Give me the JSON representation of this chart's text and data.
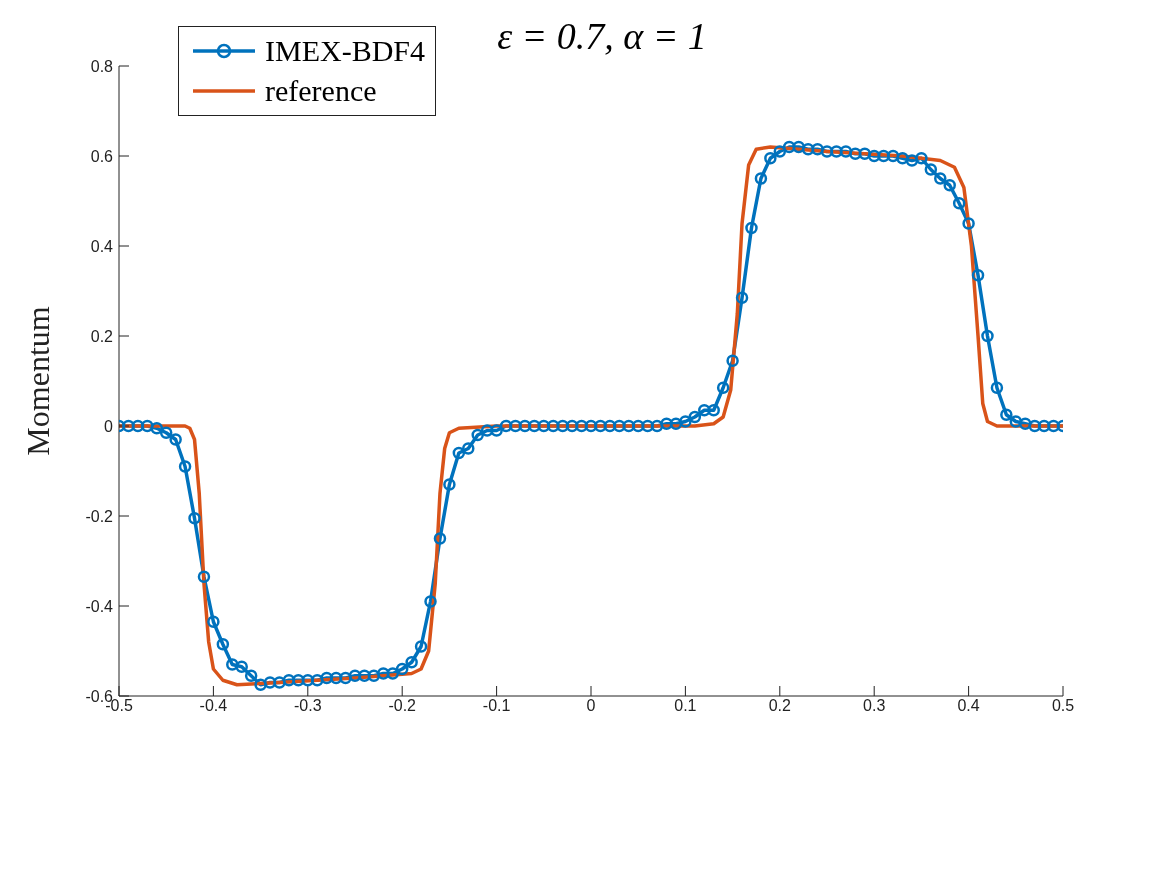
{
  "chart_data": {
    "type": "line",
    "title": "ε = 0.7, α = 1",
    "ylabel": "Momentum",
    "xlim": [
      -0.5,
      0.5
    ],
    "xticks": [
      -0.5,
      -0.4,
      -0.3,
      -0.2,
      -0.1,
      0,
      0.1,
      0.2,
      0.3,
      0.4,
      0.5
    ],
    "ylim": [
      -0.6,
      0.8
    ],
    "yticks": [
      -0.6,
      -0.4,
      -0.2,
      0,
      0.2,
      0.4,
      0.6,
      0.8
    ],
    "grid": false,
    "legend": "top left",
    "series": [
      {
        "name": "IMEX-BDF4",
        "color": "#0072bd",
        "marker": "circle",
        "x": [
          -0.5,
          -0.49,
          -0.48,
          -0.47,
          -0.46,
          -0.45,
          -0.44,
          -0.43,
          -0.42,
          -0.41,
          -0.4,
          -0.39,
          -0.38,
          -0.37,
          -0.36,
          -0.35,
          -0.34,
          -0.33,
          -0.32,
          -0.31,
          -0.3,
          -0.29,
          -0.28,
          -0.27,
          -0.26,
          -0.25,
          -0.24,
          -0.23,
          -0.22,
          -0.21,
          -0.2,
          -0.19,
          -0.18,
          -0.17,
          -0.16,
          -0.15,
          -0.14,
          -0.13,
          -0.12,
          -0.11,
          -0.1,
          -0.09,
          -0.08,
          -0.07,
          -0.06,
          -0.05,
          -0.04,
          -0.03,
          -0.02,
          -0.01,
          0,
          0.01,
          0.02,
          0.03,
          0.04,
          0.05,
          0.06,
          0.07,
          0.08,
          0.09,
          0.1,
          0.11,
          0.12,
          0.13,
          0.14,
          0.15,
          0.16,
          0.17,
          0.18,
          0.19,
          0.2,
          0.21,
          0.22,
          0.23,
          0.24,
          0.25,
          0.26,
          0.27,
          0.28,
          0.29,
          0.3,
          0.31,
          0.32,
          0.33,
          0.34,
          0.35,
          0.36,
          0.37,
          0.38,
          0.39,
          0.4,
          0.41,
          0.42,
          0.43,
          0.44,
          0.45,
          0.46,
          0.47,
          0.48,
          0.49,
          0.5
        ],
        "values": [
          0,
          0,
          0,
          0,
          -0.005,
          -0.015,
          -0.03,
          -0.09,
          -0.205,
          -0.335,
          -0.435,
          -0.485,
          -0.53,
          -0.535,
          -0.555,
          -0.575,
          -0.57,
          -0.57,
          -0.565,
          -0.565,
          -0.565,
          -0.565,
          -0.56,
          -0.56,
          -0.56,
          -0.555,
          -0.555,
          -0.555,
          -0.55,
          -0.55,
          -0.54,
          -0.525,
          -0.49,
          -0.39,
          -0.25,
          -0.13,
          -0.06,
          -0.05,
          -0.02,
          -0.01,
          -0.01,
          0,
          0,
          0,
          0,
          0,
          0,
          0,
          0,
          0,
          0,
          0,
          0,
          0,
          0,
          0,
          0,
          0,
          0.005,
          0.005,
          0.01,
          0.02,
          0.035,
          0.035,
          0.085,
          0.145,
          0.285,
          0.44,
          0.55,
          0.595,
          0.61,
          0.62,
          0.62,
          0.615,
          0.615,
          0.61,
          0.61,
          0.61,
          0.605,
          0.605,
          0.6,
          0.6,
          0.6,
          0.595,
          0.59,
          0.595,
          0.57,
          0.55,
          0.535,
          0.495,
          0.45,
          0.335,
          0.2,
          0.085,
          0.025,
          0.01,
          0.005,
          0,
          0,
          0,
          0
        ]
      },
      {
        "name": "reference",
        "color": "#d95319",
        "marker": "none",
        "x": [
          -0.5,
          -0.44,
          -0.43,
          -0.425,
          -0.42,
          -0.415,
          -0.41,
          -0.405,
          -0.4,
          -0.39,
          -0.375,
          -0.33,
          -0.25,
          -0.19,
          -0.18,
          -0.172,
          -0.165,
          -0.16,
          -0.155,
          -0.15,
          -0.14,
          -0.1,
          0.11,
          0.13,
          0.14,
          0.148,
          0.155,
          0.16,
          0.167,
          0.175,
          0.19,
          0.25,
          0.33,
          0.37,
          0.385,
          0.395,
          0.403,
          0.41,
          0.415,
          0.42,
          0.43,
          0.5
        ],
        "values": [
          0,
          0,
          0,
          -0.005,
          -0.03,
          -0.15,
          -0.35,
          -0.48,
          -0.54,
          -0.565,
          -0.575,
          -0.57,
          -0.56,
          -0.55,
          -0.54,
          -0.5,
          -0.35,
          -0.15,
          -0.05,
          -0.015,
          -0.005,
          0,
          0,
          0.005,
          0.02,
          0.08,
          0.25,
          0.45,
          0.58,
          0.615,
          0.62,
          0.61,
          0.6,
          0.59,
          0.575,
          0.53,
          0.4,
          0.2,
          0.05,
          0.01,
          0,
          0
        ]
      }
    ]
  }
}
